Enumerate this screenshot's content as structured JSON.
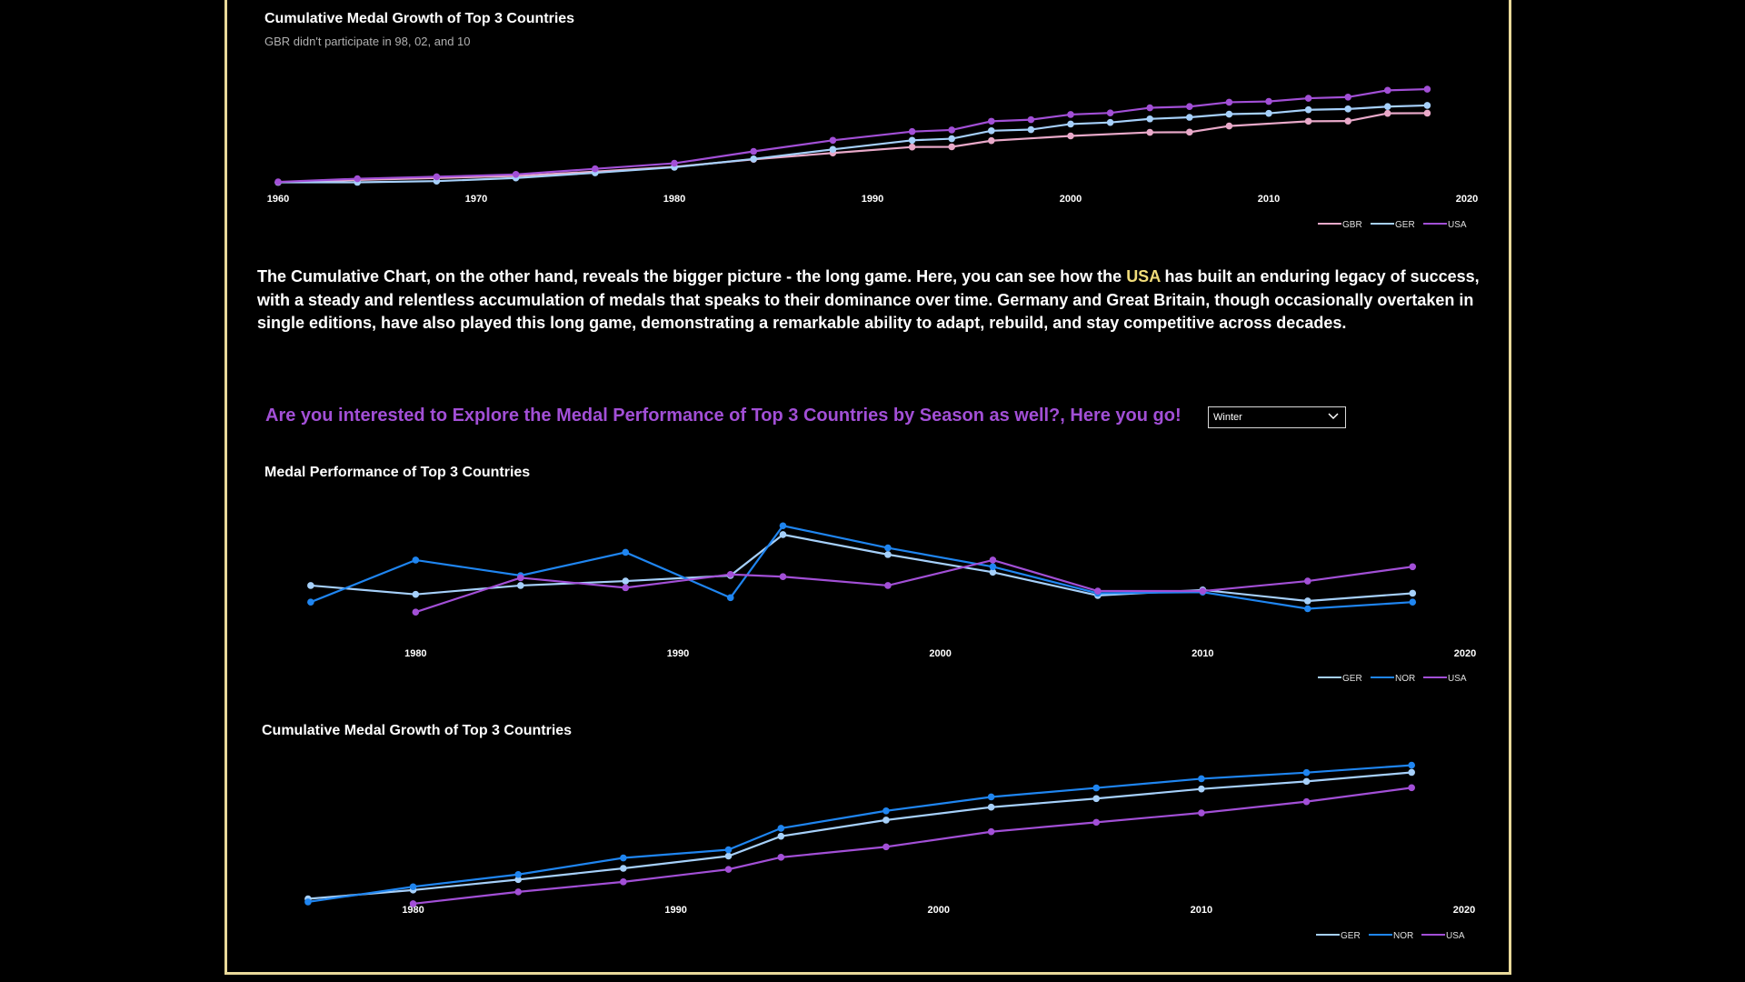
{
  "colors": {
    "border": "#e9d99a",
    "highlight": "#f1dc79",
    "prompt": "#a24fd6",
    "GBR": "#e9a9c9",
    "GER": "#a6d0fa",
    "NOR": "#1f85f0",
    "USA": "#a24fd6"
  },
  "chart1": {
    "title": "Cumulative Medal Growth of Top 3 Countries",
    "subtitle": "GBR didn't participate in 98, 02, and 10"
  },
  "story": {
    "part1": "The Cumulative Chart, on the other hand, reveals the bigger picture - the long game. Here, you can see how the ",
    "highlight": "USA",
    "part2": " has built an enduring legacy of success, with a steady and relentless accumulation of medals that speaks to their dominance over time. Germany and Great Britain, though occasionally overtaken in single editions, have also played this long game, demonstrating a remarkable ability to adapt, rebuild, and stay competitive across decades."
  },
  "prompt": "Are you interested to Explore the Medal Performance of Top 3 Countries by Season as well?, Here you go!",
  "season_select": {
    "value": "Winter",
    "icon": "chevron-down-icon"
  },
  "chart2": {
    "title": "Medal Performance of Top 3 Countries"
  },
  "chart3": {
    "title": "Cumulative Medal Growth of Top 3 Countries"
  },
  "chart_data": [
    {
      "type": "line",
      "title": "Cumulative Medal Growth of Top 3 Countries",
      "subtitle": "GBR didn't participate in 98, 02, and 10",
      "xticks": [
        1960,
        1970,
        1980,
        1990,
        2000,
        2010,
        2020
      ],
      "xlim": [
        1960,
        2020
      ],
      "ylim": [
        0,
        2500
      ],
      "legend": "bottom-right",
      "series": [
        {
          "name": "GBR",
          "points": [
            [
              1960,
              80
            ],
            [
              1964,
              140
            ],
            [
              1968,
              190
            ],
            [
              1972,
              240
            ],
            [
              1976,
              350
            ],
            [
              1980,
              470
            ],
            [
              1984,
              660
            ],
            [
              1988,
              820
            ],
            [
              1992,
              970
            ],
            [
              1994,
              975
            ],
            [
              1996,
              1130
            ],
            [
              2000,
              1250
            ],
            [
              2004,
              1340
            ],
            [
              2006,
              1345
            ],
            [
              2008,
              1500
            ],
            [
              2012,
              1620
            ],
            [
              2014,
              1625
            ],
            [
              2016,
              1820
            ],
            [
              2018,
              1825
            ]
          ]
        },
        {
          "name": "GER",
          "points": [
            [
              1960,
              80
            ],
            [
              1964,
              80
            ],
            [
              1968,
              110
            ],
            [
              1972,
              190
            ],
            [
              1976,
              320
            ],
            [
              1980,
              460
            ],
            [
              1984,
              670
            ],
            [
              1988,
              910
            ],
            [
              1992,
              1140
            ],
            [
              1994,
              1180
            ],
            [
              1996,
              1380
            ],
            [
              1998,
              1410
            ],
            [
              2000,
              1550
            ],
            [
              2002,
              1590
            ],
            [
              2004,
              1680
            ],
            [
              2006,
              1720
            ],
            [
              2008,
              1800
            ],
            [
              2010,
              1820
            ],
            [
              2012,
              1910
            ],
            [
              2014,
              1930
            ],
            [
              2016,
              1990
            ],
            [
              2018,
              2020
            ]
          ]
        },
        {
          "name": "USA",
          "points": [
            [
              1960,
              90
            ],
            [
              1964,
              170
            ],
            [
              1968,
              220
            ],
            [
              1972,
              280
            ],
            [
              1976,
              420
            ],
            [
              1980,
              560
            ],
            [
              1984,
              860
            ],
            [
              1988,
              1140
            ],
            [
              1992,
              1360
            ],
            [
              1994,
              1400
            ],
            [
              1996,
              1620
            ],
            [
              1998,
              1660
            ],
            [
              2000,
              1790
            ],
            [
              2002,
              1830
            ],
            [
              2004,
              1960
            ],
            [
              2006,
              1990
            ],
            [
              2008,
              2100
            ],
            [
              2010,
              2120
            ],
            [
              2012,
              2200
            ],
            [
              2014,
              2230
            ],
            [
              2016,
              2400
            ],
            [
              2018,
              2430
            ]
          ]
        }
      ]
    },
    {
      "type": "line",
      "title": "Medal Performance of Top 3 Countries",
      "season": "Winter",
      "xticks": [
        1980,
        1990,
        2000,
        2010,
        2020
      ],
      "xlim": [
        1975,
        2020
      ],
      "ylim": [
        0,
        120
      ],
      "legend": "bottom-right",
      "series": [
        {
          "name": "GER",
          "points": [
            [
              1976,
              51
            ],
            [
              1980,
              43
            ],
            [
              1984,
              51
            ],
            [
              1988,
              55
            ],
            [
              1992,
              60
            ],
            [
              1994,
              97
            ],
            [
              1998,
              79
            ],
            [
              2002,
              63
            ],
            [
              2006,
              42
            ],
            [
              2010,
              47
            ],
            [
              2014,
              37
            ],
            [
              2018,
              44
            ]
          ]
        },
        {
          "name": "NOR",
          "points": [
            [
              1976,
              36
            ],
            [
              1980,
              74
            ],
            [
              1984,
              60
            ],
            [
              1988,
              81
            ],
            [
              1992,
              40
            ],
            [
              1994,
              105
            ],
            [
              1998,
              85
            ],
            [
              2002,
              68
            ],
            [
              2006,
              44
            ],
            [
              2010,
              45
            ],
            [
              2014,
              30
            ],
            [
              2018,
              36
            ]
          ]
        },
        {
          "name": "USA",
          "points": [
            [
              1980,
              27
            ],
            [
              1984,
              58
            ],
            [
              1988,
              49
            ],
            [
              1992,
              61
            ],
            [
              1994,
              59
            ],
            [
              1998,
              51
            ],
            [
              2002,
              74
            ],
            [
              2006,
              46
            ],
            [
              2010,
              46
            ],
            [
              2014,
              55
            ],
            [
              2018,
              68
            ]
          ]
        }
      ]
    },
    {
      "type": "line",
      "title": "Cumulative Medal Growth of Top 3 Countries",
      "season": "Winter",
      "xticks": [
        1980,
        1990,
        2000,
        2010,
        2020
      ],
      "xlim": [
        1975,
        2020
      ],
      "ylim": [
        0,
        800
      ],
      "legend": "bottom-right",
      "series": [
        {
          "name": "GER",
          "points": [
            [
              1976,
              51
            ],
            [
              1980,
              94
            ],
            [
              1984,
              145
            ],
            [
              1988,
              200
            ],
            [
              1992,
              260
            ],
            [
              1994,
              357
            ],
            [
              1998,
              436
            ],
            [
              2002,
              499
            ],
            [
              2006,
              541
            ],
            [
              2010,
              588
            ],
            [
              2014,
              625
            ],
            [
              2018,
              669
            ]
          ]
        },
        {
          "name": "NOR",
          "points": [
            [
              1976,
              36
            ],
            [
              1980,
              110
            ],
            [
              1984,
              170
            ],
            [
              1988,
              251
            ],
            [
              1992,
              291
            ],
            [
              1994,
              396
            ],
            [
              1998,
              481
            ],
            [
              2002,
              549
            ],
            [
              2006,
              593
            ],
            [
              2010,
              638
            ],
            [
              2014,
              668
            ],
            [
              2018,
              704
            ]
          ]
        },
        {
          "name": "USA",
          "points": [
            [
              1980,
              27
            ],
            [
              1984,
              85
            ],
            [
              1988,
              134
            ],
            [
              1992,
              195
            ],
            [
              1994,
              254
            ],
            [
              1998,
              305
            ],
            [
              2002,
              379
            ],
            [
              2006,
              425
            ],
            [
              2010,
              471
            ],
            [
              2014,
              526
            ],
            [
              2018,
              594
            ]
          ]
        }
      ]
    }
  ]
}
